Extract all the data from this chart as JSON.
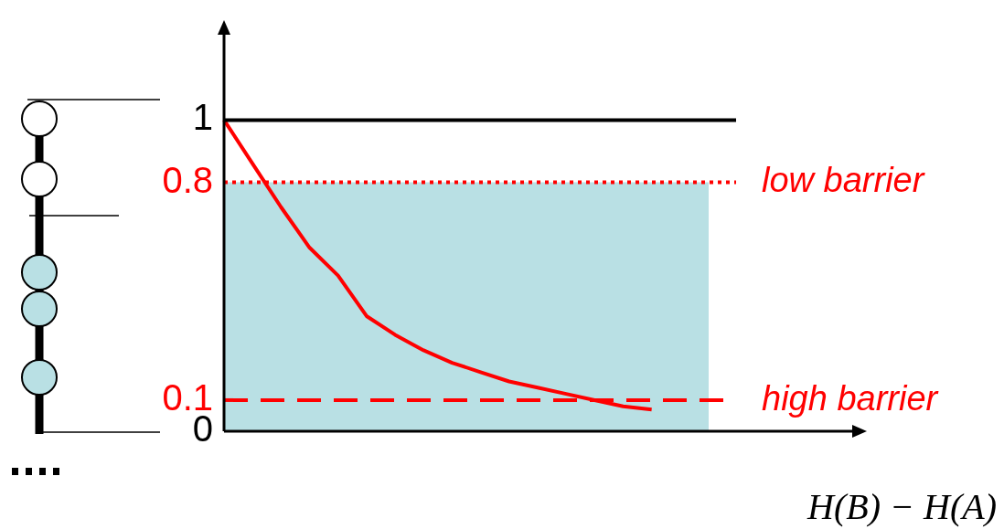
{
  "chart_data": {
    "type": "line",
    "xlabel": "H(B) − H(A)",
    "categories": [
      null,
      null,
      null,
      null,
      null,
      null,
      null,
      null,
      null,
      null,
      null,
      null,
      null,
      null,
      null,
      null,
      null,
      null
    ],
    "series": [
      {
        "color": "#ff0000",
        "values": [
          1,
          0.86,
          0.72,
          0.59,
          0.5,
          0.37,
          0.31,
          0.26,
          0.22,
          0.19,
          0.16,
          0.14,
          0.12,
          0.1,
          0.08,
          0.07,
          null,
          null
        ]
      }
    ],
    "ylim": [
      0,
      1.28
    ],
    "yticks": [
      0,
      0.1,
      0.8,
      1
    ],
    "ref_lines": [
      {
        "axis": "y",
        "value": 1,
        "color": "#000000",
        "line_style": "solid"
      },
      {
        "axis": "y",
        "value": 0.8,
        "label": "low barrier",
        "color": "#ff0000",
        "line_style": "dotted"
      },
      {
        "axis": "y",
        "value": 0.1,
        "label": "high barrier",
        "color": "#ff0000",
        "line_style": "dashed"
      }
    ],
    "bands": [
      {
        "axis": "y",
        "from": 0,
        "to": 0.8,
        "color": "#b9e0e4"
      }
    ],
    "grid": false,
    "legend": false,
    "marker": "none",
    "line_style": "solid"
  }
}
